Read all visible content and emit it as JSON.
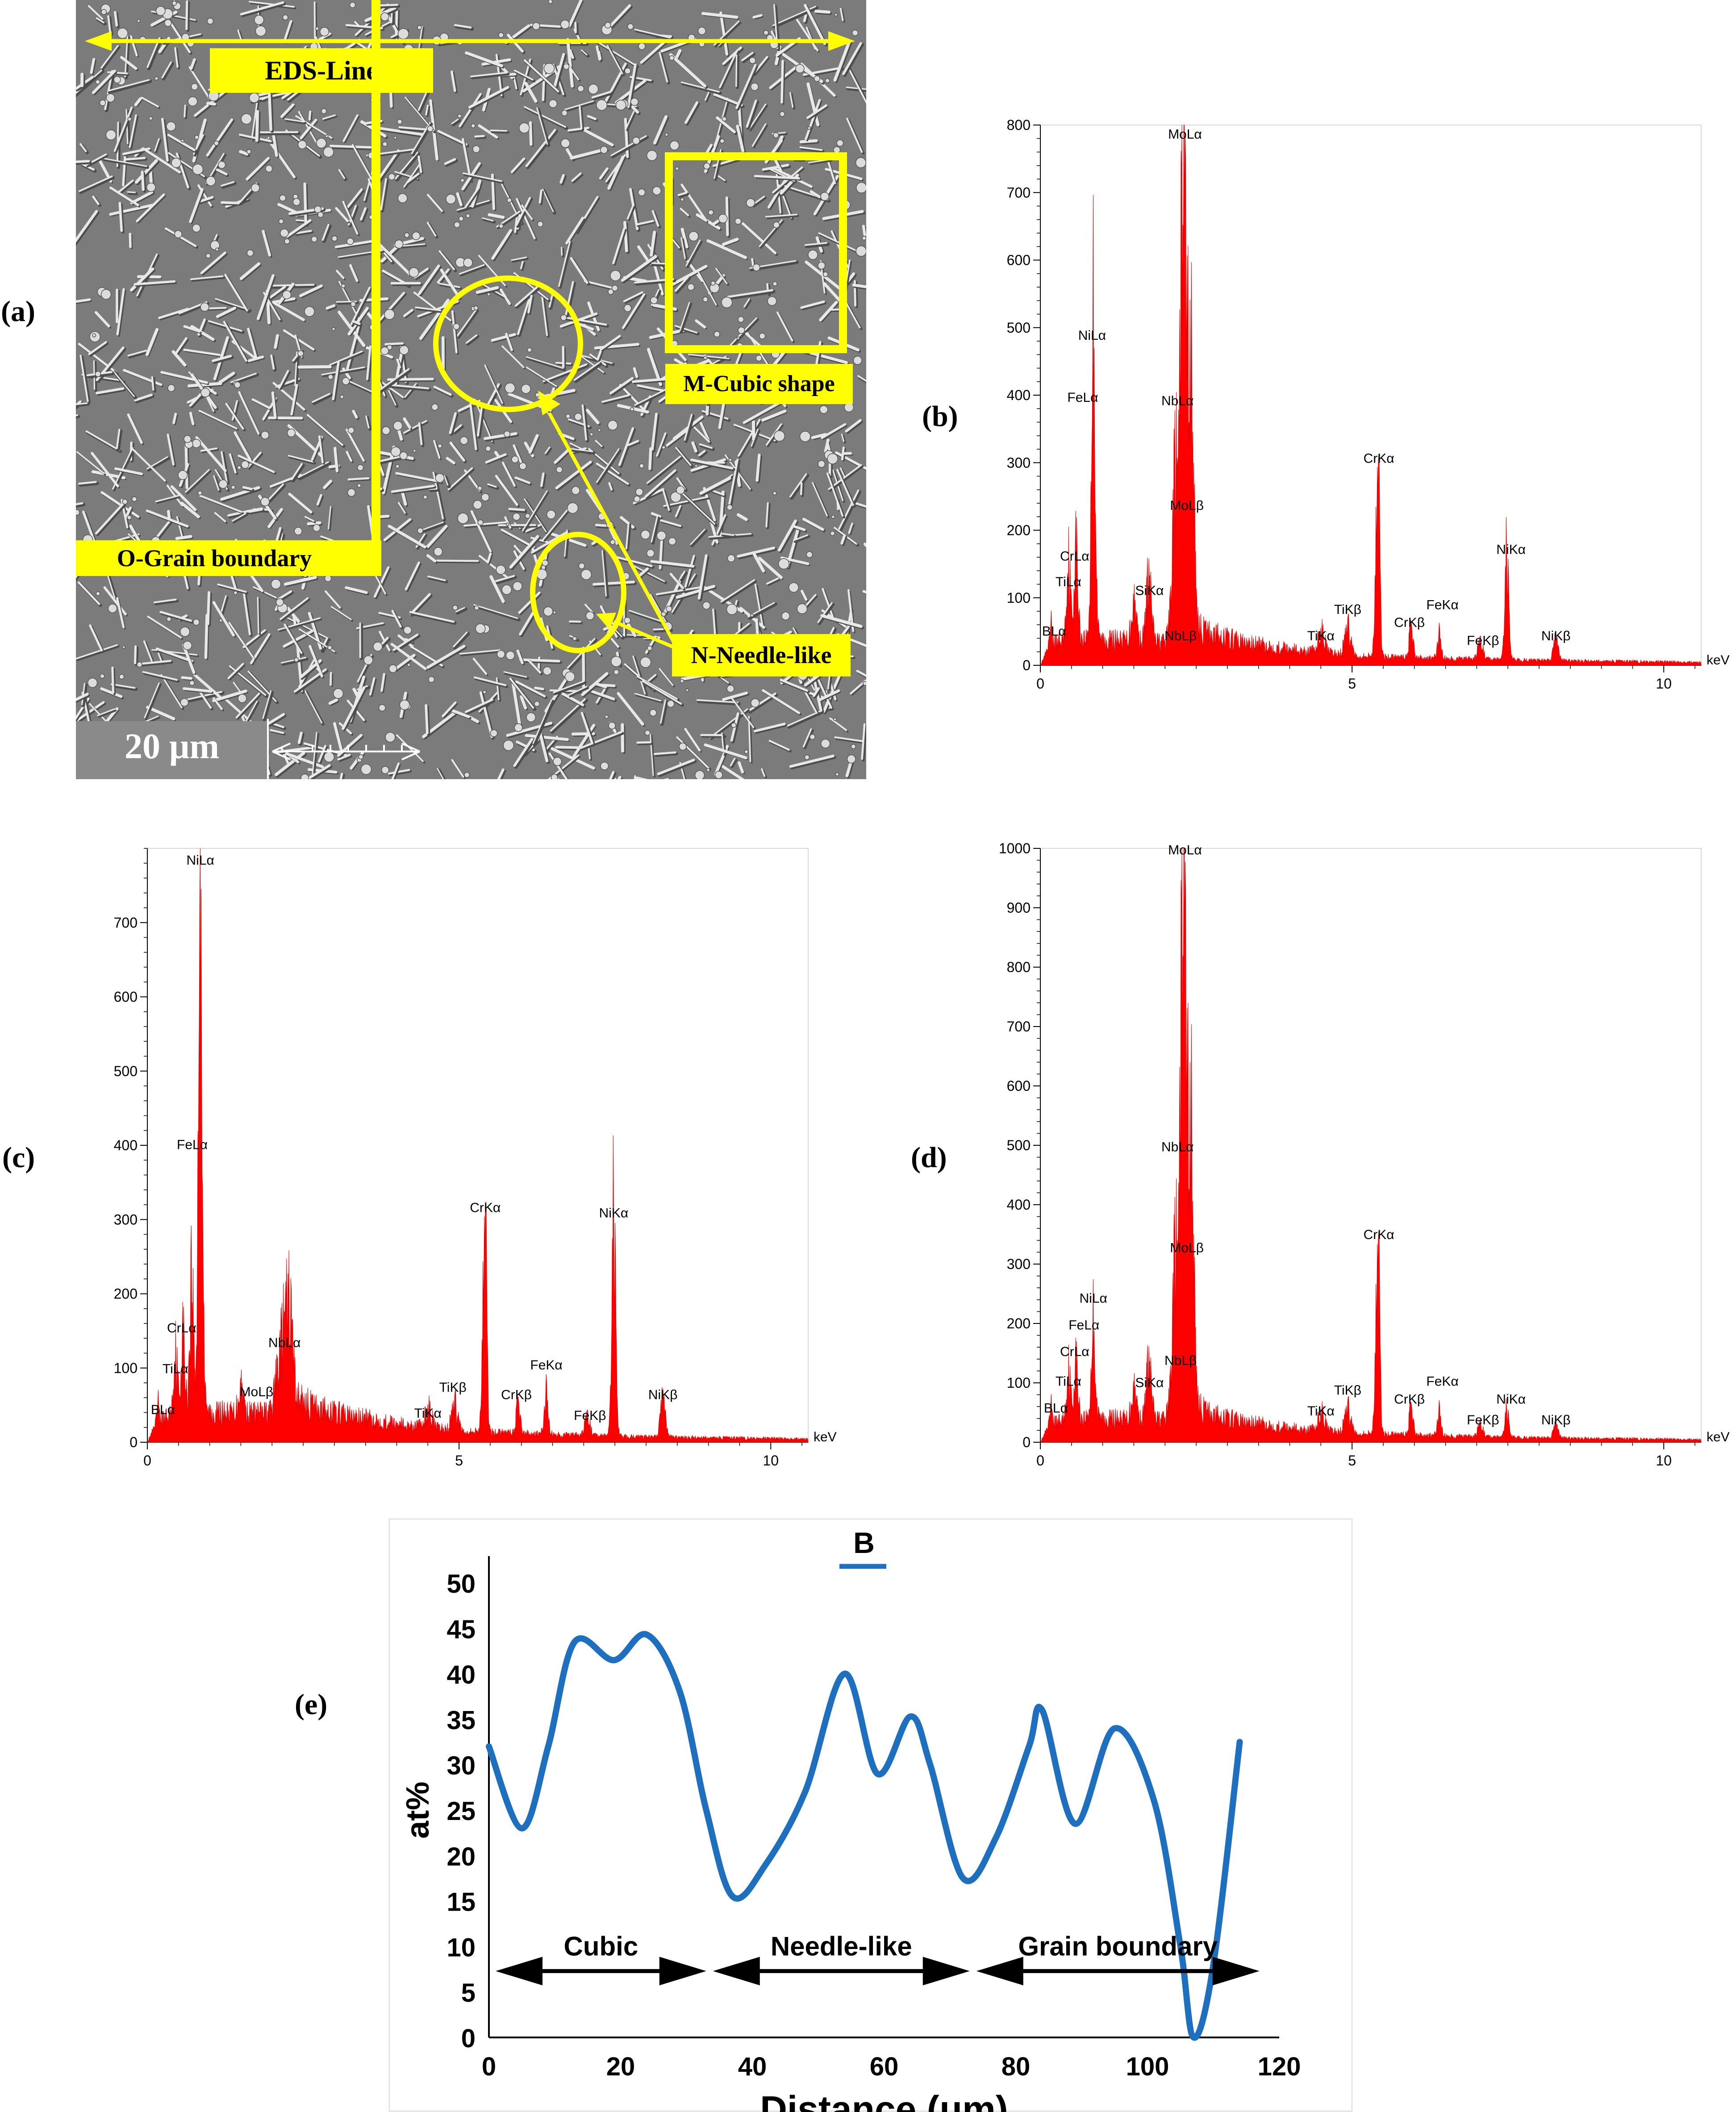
{
  "panel_labels": {
    "a": "(a)",
    "b": "(b)",
    "c": "(c)",
    "d": "(d)",
    "e": "(e)"
  },
  "micrograph": {
    "eds_line": "EDS-Line",
    "m_label": "M-Cubic shape",
    "o_label": "O-Grain boundary",
    "n_label": "N-Needle-like",
    "scale": "20 μm"
  },
  "chart_data": [
    {
      "id": "b",
      "type": "spectrum",
      "xlabel": "keV",
      "xlim": [
        0,
        10.6
      ],
      "ylim": [
        0,
        800
      ],
      "xticks": [
        0,
        5,
        10
      ],
      "yticks": [
        0,
        100,
        200,
        300,
        400,
        500,
        600,
        700,
        800
      ],
      "base": [
        [
          0,
          0
        ],
        [
          0.15,
          28
        ],
        [
          0.5,
          42
        ],
        [
          1,
          38
        ],
        [
          1.5,
          36
        ],
        [
          2,
          34
        ],
        [
          2.3,
          62
        ],
        [
          2.8,
          45
        ],
        [
          3.3,
          32
        ],
        [
          4,
          24
        ],
        [
          5,
          14
        ],
        [
          6,
          11
        ],
        [
          7,
          9
        ],
        [
          8,
          7
        ],
        [
          9,
          6
        ],
        [
          10,
          5
        ],
        [
          10.6,
          4
        ]
      ],
      "peaks": [
        [
          0.18,
          30,
          0.02
        ],
        [
          0.45,
          110,
          0.03
        ],
        [
          0.57,
          130,
          0.03
        ],
        [
          0.85,
          470,
          0.03
        ],
        [
          1.5,
          60,
          0.04
        ],
        [
          1.74,
          90,
          0.04
        ],
        [
          2.17,
          230,
          0.05
        ],
        [
          2.29,
          770,
          0.035
        ],
        [
          2.4,
          420,
          0.05
        ],
        [
          4.51,
          30,
          0.05
        ],
        [
          4.93,
          40,
          0.05
        ],
        [
          5.41,
          290,
          0.03
        ],
        [
          5.95,
          45,
          0.03
        ],
        [
          6.4,
          35,
          0.03
        ],
        [
          7.06,
          25,
          0.04
        ],
        [
          7.48,
          150,
          0.03
        ],
        [
          8.27,
          30,
          0.04
        ]
      ],
      "labels": [
        {
          "t": "BLα",
          "x": 0.22,
          "y": 44
        },
        {
          "t": "TiLα",
          "x": 0.45,
          "y": 117
        },
        {
          "t": "CrLα",
          "x": 0.55,
          "y": 155
        },
        {
          "t": "FeLα",
          "x": 0.68,
          "y": 390
        },
        {
          "t": "NiLα",
          "x": 0.83,
          "y": 482
        },
        {
          "t": "SiKα",
          "x": 1.75,
          "y": 104
        },
        {
          "t": "NbLα",
          "x": 2.2,
          "y": 385
        },
        {
          "t": "MoLα",
          "x": 2.32,
          "y": 780
        },
        {
          "t": "MoLβ",
          "x": 2.35,
          "y": 230
        },
        {
          "t": "NbLβ",
          "x": 2.25,
          "y": 37
        },
        {
          "t": "TiKα",
          "x": 4.5,
          "y": 37
        },
        {
          "t": "TiKβ",
          "x": 4.93,
          "y": 76
        },
        {
          "t": "CrKα",
          "x": 5.43,
          "y": 300
        },
        {
          "t": "CrKβ",
          "x": 5.92,
          "y": 57
        },
        {
          "t": "FeKα",
          "x": 6.45,
          "y": 83
        },
        {
          "t": "FeKβ",
          "x": 7.1,
          "y": 30
        },
        {
          "t": "NiKα",
          "x": 7.55,
          "y": 165
        },
        {
          "t": "NiKβ",
          "x": 8.27,
          "y": 37
        }
      ]
    },
    {
      "id": "c",
      "type": "spectrum",
      "xlabel": "keV",
      "xlim": [
        0,
        10.6
      ],
      "ylim": [
        0,
        800
      ],
      "xticks": [
        0,
        5,
        10
      ],
      "yticks": [
        0,
        100,
        200,
        300,
        400,
        500,
        600,
        700
      ],
      "base": [
        [
          0,
          0
        ],
        [
          0.15,
          25
        ],
        [
          0.5,
          42
        ],
        [
          1,
          40
        ],
        [
          1.5,
          38
        ],
        [
          2,
          40
        ],
        [
          2.3,
          60
        ],
        [
          2.8,
          44
        ],
        [
          3.3,
          34
        ],
        [
          4,
          25
        ],
        [
          5,
          15
        ],
        [
          6,
          12
        ],
        [
          7,
          9
        ],
        [
          8,
          7
        ],
        [
          9,
          6
        ],
        [
          10,
          5
        ],
        [
          10.6,
          4
        ]
      ],
      "peaks": [
        [
          0.18,
          25,
          0.02
        ],
        [
          0.45,
          80,
          0.03
        ],
        [
          0.57,
          100,
          0.03
        ],
        [
          0.71,
          190,
          0.03
        ],
        [
          0.85,
          770,
          0.03
        ],
        [
          1.5,
          40,
          0.04
        ],
        [
          2.1,
          50,
          0.05
        ],
        [
          2.2,
          80,
          0.05
        ],
        [
          2.29,
          100,
          0.05
        ],
        [
          4.51,
          25,
          0.05
        ],
        [
          4.93,
          35,
          0.05
        ],
        [
          5.41,
          300,
          0.03
        ],
        [
          5.95,
          40,
          0.03
        ],
        [
          6.4,
          55,
          0.03
        ],
        [
          7.06,
          25,
          0.04
        ],
        [
          7.48,
          290,
          0.03
        ],
        [
          8.27,
          50,
          0.04
        ]
      ],
      "labels": [
        {
          "t": "BLα",
          "x": 0.25,
          "y": 38
        },
        {
          "t": "TiLα",
          "x": 0.45,
          "y": 93
        },
        {
          "t": "CrLα",
          "x": 0.55,
          "y": 148
        },
        {
          "t": "FeLα",
          "x": 0.72,
          "y": 395
        },
        {
          "t": "NiLα",
          "x": 0.85,
          "y": 778
        },
        {
          "t": "MoLβ",
          "x": 1.75,
          "y": 62
        },
        {
          "t": "NbLα",
          "x": 2.2,
          "y": 128
        },
        {
          "t": "TiKα",
          "x": 4.5,
          "y": 33
        },
        {
          "t": "TiKβ",
          "x": 4.9,
          "y": 68
        },
        {
          "t": "CrKα",
          "x": 5.42,
          "y": 310
        },
        {
          "t": "CrKβ",
          "x": 5.92,
          "y": 58
        },
        {
          "t": "FeKα",
          "x": 6.4,
          "y": 98
        },
        {
          "t": "FeKβ",
          "x": 7.1,
          "y": 30
        },
        {
          "t": "NiKα",
          "x": 7.48,
          "y": 303
        },
        {
          "t": "NiKβ",
          "x": 8.27,
          "y": 58
        }
      ]
    },
    {
      "id": "d",
      "type": "spectrum",
      "xlabel": "keV",
      "xlim": [
        0,
        10.6
      ],
      "ylim": [
        0,
        1000
      ],
      "xticks": [
        0,
        5,
        10
      ],
      "yticks": [
        0,
        100,
        200,
        300,
        400,
        500,
        600,
        700,
        800,
        900,
        1000
      ],
      "base": [
        [
          0,
          0
        ],
        [
          0.15,
          28
        ],
        [
          0.5,
          42
        ],
        [
          1,
          40
        ],
        [
          1.5,
          38
        ],
        [
          2,
          38
        ],
        [
          2.3,
          70
        ],
        [
          2.8,
          45
        ],
        [
          3.3,
          33
        ],
        [
          4,
          24
        ],
        [
          5,
          15
        ],
        [
          6,
          12
        ],
        [
          7,
          9
        ],
        [
          8,
          7
        ],
        [
          9,
          6
        ],
        [
          10,
          5
        ],
        [
          10.6,
          4
        ]
      ],
      "peaks": [
        [
          0.18,
          30,
          0.02
        ],
        [
          0.45,
          80,
          0.03
        ],
        [
          0.57,
          90,
          0.03
        ],
        [
          0.85,
          160,
          0.03
        ],
        [
          1.5,
          55,
          0.04
        ],
        [
          1.74,
          90,
          0.04
        ],
        [
          2.17,
          250,
          0.05
        ],
        [
          2.29,
          980,
          0.035
        ],
        [
          2.4,
          500,
          0.05
        ],
        [
          4.51,
          30,
          0.05
        ],
        [
          4.93,
          40,
          0.05
        ],
        [
          5.41,
          330,
          0.03
        ],
        [
          5.95,
          45,
          0.03
        ],
        [
          6.4,
          40,
          0.03
        ],
        [
          7.06,
          20,
          0.04
        ],
        [
          7.48,
          45,
          0.03
        ],
        [
          8.27,
          20,
          0.04
        ]
      ],
      "labels": [
        {
          "t": "BLα",
          "x": 0.25,
          "y": 50
        },
        {
          "t": "TiLα",
          "x": 0.45,
          "y": 95
        },
        {
          "t": "CrLα",
          "x": 0.55,
          "y": 145
        },
        {
          "t": "FeLα",
          "x": 0.7,
          "y": 190
        },
        {
          "t": "NiLα",
          "x": 0.85,
          "y": 235
        },
        {
          "t": "SiKα",
          "x": 1.75,
          "y": 93
        },
        {
          "t": "NbLα",
          "x": 2.2,
          "y": 490
        },
        {
          "t": "MoLα",
          "x": 2.32,
          "y": 990
        },
        {
          "t": "MoLβ",
          "x": 2.35,
          "y": 320
        },
        {
          "t": "NbLβ",
          "x": 2.25,
          "y": 130
        },
        {
          "t": "TiKα",
          "x": 4.5,
          "y": 45
        },
        {
          "t": "TiKβ",
          "x": 4.93,
          "y": 80
        },
        {
          "t": "CrKα",
          "x": 5.43,
          "y": 342
        },
        {
          "t": "CrKβ",
          "x": 5.92,
          "y": 65
        },
        {
          "t": "FeKα",
          "x": 6.45,
          "y": 95
        },
        {
          "t": "FeKβ",
          "x": 7.1,
          "y": 30
        },
        {
          "t": "NiKα",
          "x": 7.55,
          "y": 65
        },
        {
          "t": "NiKβ",
          "x": 8.27,
          "y": 30
        }
      ]
    },
    {
      "id": "e",
      "type": "line",
      "title": "B",
      "xlabel": "Distance (μm)",
      "ylabel": "at%",
      "xlim": [
        0,
        120
      ],
      "ylim": [
        0,
        50
      ],
      "xticks": [
        0,
        20,
        40,
        60,
        80,
        100,
        120
      ],
      "yticks": [
        0,
        5,
        10,
        15,
        20,
        25,
        30,
        35,
        40,
        45,
        50
      ],
      "series": [
        {
          "name": "B",
          "color": "#1f6fbf",
          "points": [
            [
              0,
              32
            ],
            [
              5,
              23
            ],
            [
              9,
              32
            ],
            [
              13,
              43.5
            ],
            [
              19,
              41.5
            ],
            [
              24,
              44.3
            ],
            [
              29,
              38
            ],
            [
              33,
              25
            ],
            [
              37,
              15.5
            ],
            [
              42,
              19
            ],
            [
              48,
              27
            ],
            [
              54,
              40
            ],
            [
              59,
              29
            ],
            [
              64,
              35.3
            ],
            [
              67,
              30
            ],
            [
              72,
              17.5
            ],
            [
              77,
              22
            ],
            [
              82,
              32
            ],
            [
              84,
              36
            ],
            [
              89,
              23.5
            ],
            [
              95,
              34
            ],
            [
              101,
              26
            ],
            [
              105,
              10
            ],
            [
              107,
              0
            ],
            [
              110,
              8
            ],
            [
              114,
              32.5
            ]
          ]
        }
      ],
      "regions": [
        {
          "label": "Cubic",
          "from": 0,
          "to": 33
        },
        {
          "label": "Needle-like",
          "from": 33,
          "to": 73
        },
        {
          "label": "Grain boundary",
          "from": 73,
          "to": 117
        }
      ]
    }
  ]
}
